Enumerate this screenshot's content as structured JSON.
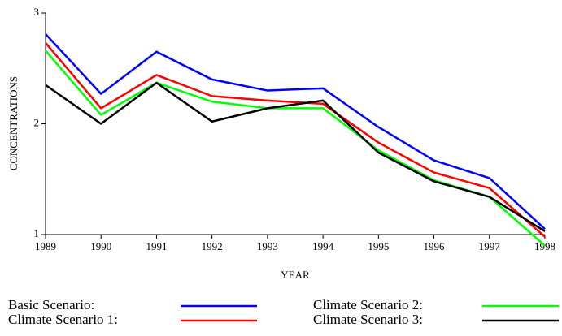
{
  "chart_data": {
    "type": "line",
    "x_label": "YEAR",
    "y_label": "CONCENTRATIONS",
    "x": [
      1989,
      1990,
      1991,
      1992,
      1993,
      1994,
      1995,
      1996,
      1997,
      1998
    ],
    "xlim": [
      1989,
      1998
    ],
    "xticks": [
      1989,
      1990,
      1991,
      1992,
      1993,
      1994,
      1995,
      1996,
      1997,
      1998
    ],
    "ylim": [
      1,
      3
    ],
    "yticks": [
      1,
      2,
      3
    ],
    "series": [
      {
        "name": "Basic Scenario:",
        "color": "#0000ff",
        "values": [
          2.81,
          2.27,
          2.65,
          2.4,
          2.3,
          2.32,
          1.97,
          1.67,
          1.51,
          1.05
        ]
      },
      {
        "name": "Climate Scenario 1:",
        "color": "#ff0000",
        "values": [
          2.73,
          2.14,
          2.44,
          2.25,
          2.21,
          2.18,
          1.83,
          1.56,
          1.42,
          0.98
        ]
      },
      {
        "name": "Climate Scenario 2:",
        "color": "#00ff00",
        "values": [
          2.66,
          2.08,
          2.37,
          2.2,
          2.14,
          2.14,
          1.76,
          1.49,
          1.34,
          0.9
        ]
      },
      {
        "name": "Climate Scenario 3:",
        "color": "#000000",
        "values": [
          2.35,
          2.0,
          2.37,
          2.02,
          2.14,
          2.21,
          1.74,
          1.48,
          1.34,
          1.03
        ]
      }
    ]
  }
}
